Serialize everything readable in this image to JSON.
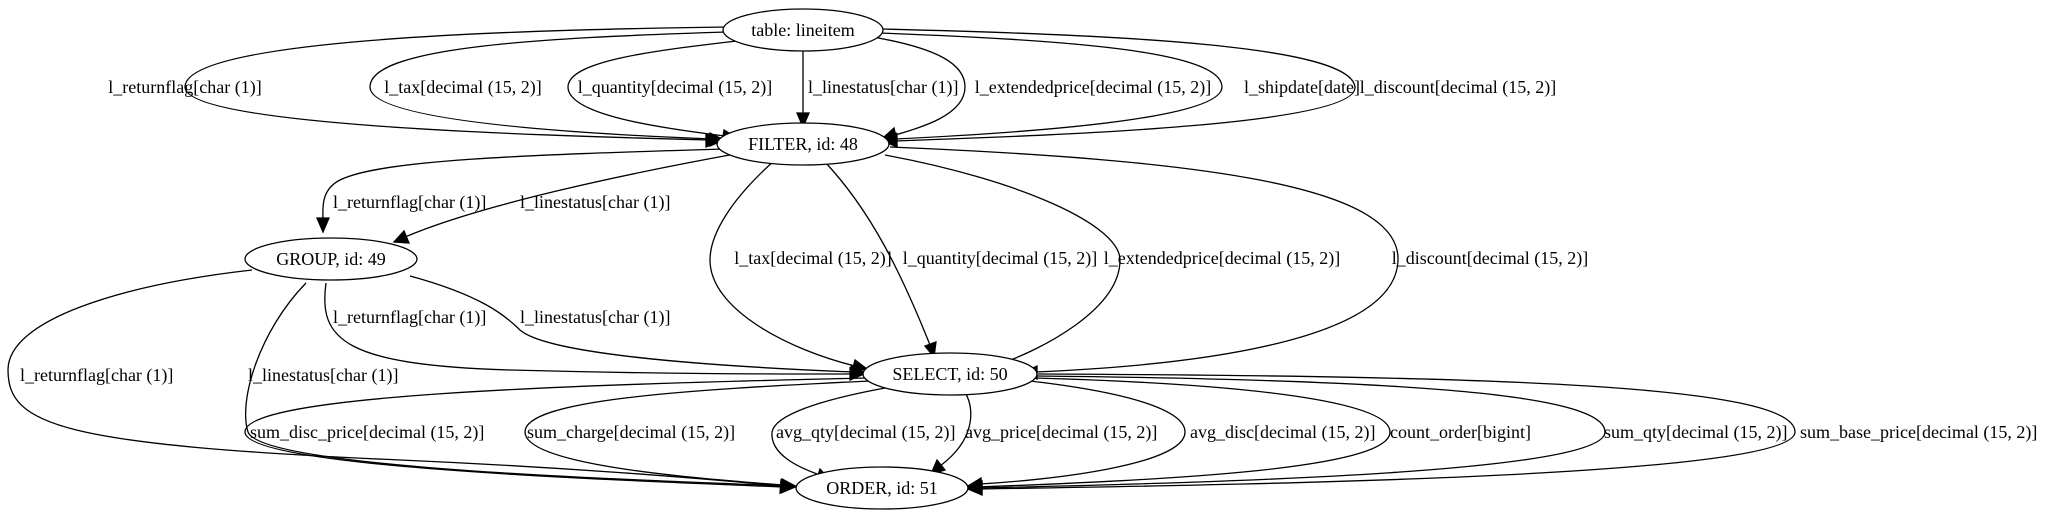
{
  "nodes": {
    "lineitem": "table: lineitem",
    "filter": "FILTER, id: 48",
    "group": "GROUP, id: 49",
    "select": "SELECT, id: 50",
    "order": "ORDER, id: 51"
  },
  "edges": {
    "li_f_returnflag": "l_returnflag[char (1)]",
    "li_f_tax": "l_tax[decimal (15, 2)]",
    "li_f_quantity": "l_quantity[decimal (15, 2)]",
    "li_f_linestatus": "l_linestatus[char (1)]",
    "li_f_extendedprice": "l_extendedprice[decimal (15, 2)]",
    "li_f_shipdate": "l_shipdate[date]",
    "li_f_discount": "l_discount[decimal (15, 2)]",
    "f_g_returnflag": "l_returnflag[char (1)]",
    "f_g_linestatus": "l_linestatus[char (1)]",
    "f_s_tax": "l_tax[decimal (15, 2)]",
    "f_s_quantity": "l_quantity[decimal (15, 2)]",
    "f_s_extendedprice": "l_extendedprice[decimal (15, 2)]",
    "f_s_discount": "l_discount[decimal (15, 2)]",
    "g_s_returnflag": "l_returnflag[char (1)]",
    "g_s_linestatus": "l_linestatus[char (1)]",
    "g_o_returnflag": "l_returnflag[char (1)]",
    "g_o_linestatus": "l_linestatus[char (1)]",
    "s_o_sum_disc_price": "sum_disc_price[decimal (15, 2)]",
    "s_o_sum_charge": "sum_charge[decimal (15, 2)]",
    "s_o_avg_qty": "avg_qty[decimal (15, 2)]",
    "s_o_avg_price": "avg_price[decimal (15, 2)]",
    "s_o_avg_disc": "avg_disc[decimal (15, 2)]",
    "s_o_count_order": "count_order[bigint]",
    "s_o_sum_qty": "sum_qty[decimal (15, 2)]",
    "s_o_sum_base_price": "sum_base_price[decimal (15, 2)]"
  }
}
